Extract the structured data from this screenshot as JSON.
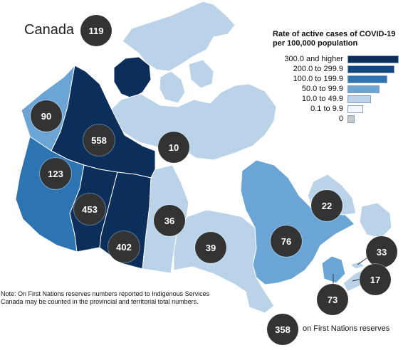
{
  "title": "Canada",
  "colors": {
    "c300": "#0b2e5a",
    "c200": "#12467e",
    "c100": "#2d74b2",
    "c50": "#6aa5d6",
    "c10": "#bad3e8",
    "c01": "#f4f8fc",
    "c0": "#c8c8c8",
    "bubble": "#333333",
    "border": "#8fa6bd"
  },
  "legend": {
    "title": "Rate of active cases of COVID-19 per 100,000 population",
    "items": [
      {
        "label": "300.0 and higher",
        "color": "#0b2e5a",
        "level": 1.0
      },
      {
        "label": "200.0 to 299.9",
        "color": "#12467e",
        "level": 0.92
      },
      {
        "label": "100.0 to 199.9",
        "color": "#2d74b2",
        "level": 0.78
      },
      {
        "label": "50.0 to 99.9",
        "color": "#6aa5d6",
        "level": 0.62
      },
      {
        "label": "10.0 to 49.9",
        "color": "#bad3e8",
        "level": 0.46
      },
      {
        "label": "0.1 to 9.9",
        "color": "#f4f8fc",
        "level": 0.3
      },
      {
        "label": "0",
        "color": "#c8c8c8",
        "level": 0.14
      }
    ]
  },
  "regions": {
    "canada": {
      "value": "119"
    },
    "yukon": {
      "value": "90"
    },
    "northwest_territories": {
      "value": "558"
    },
    "nunavut": {
      "value": "10"
    },
    "british_columbia": {
      "value": "123"
    },
    "alberta": {
      "value": "453"
    },
    "saskatchewan": {
      "value": "402"
    },
    "manitoba": {
      "value": "36"
    },
    "ontario": {
      "value": "39"
    },
    "quebec": {
      "value": "76"
    },
    "newfoundland_labrador": {
      "value": "22"
    },
    "prince_edward_island": {
      "value": "33"
    },
    "nova_scotia": {
      "value": "17"
    },
    "new_brunswick": {
      "value": "73"
    },
    "first_nations_reserves": {
      "value": "358",
      "label": "on First Nations reserves"
    }
  },
  "note": "Note: On First Nations reserves numbers reported to Indigenous Services Canada may be counted in the provincial and territorial total numbers."
}
